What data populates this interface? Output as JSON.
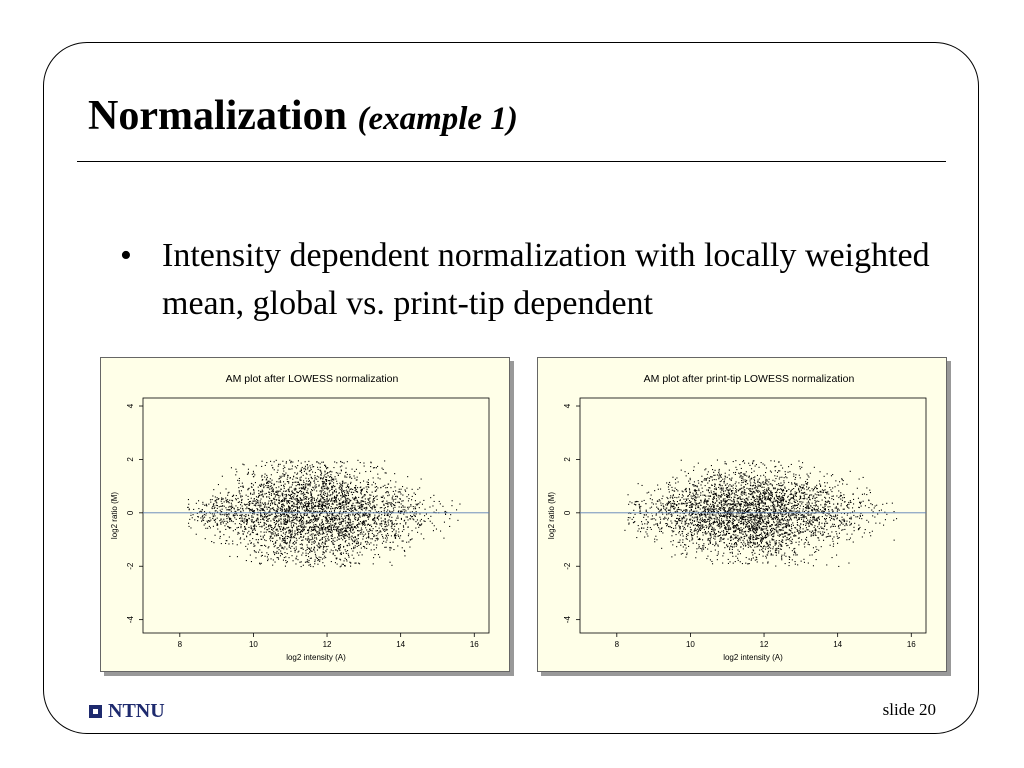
{
  "slide": {
    "title": "Normalization",
    "title_sub": "(example 1)",
    "bullets": [
      "Intensity dependent normalization with locally weighted mean, global vs. print-tip dependent"
    ],
    "bullet_symbol": "•",
    "footer_logo": "NTNU",
    "slide_number": "slide 20",
    "logo_color": "#1e2a6e"
  },
  "chart_data": [
    {
      "type": "scatter",
      "title": "AM plot after LOWESS normalization",
      "xlabel": "log2 intensity (A)",
      "ylabel": "log2 ratio (M)",
      "xlim": [
        7,
        16.4
      ],
      "ylim": [
        -4.5,
        4.3
      ],
      "xticks": [
        8,
        10,
        12,
        14,
        16
      ],
      "yticks": [
        -4,
        -2,
        0,
        2,
        4
      ],
      "xtick_labels": [
        "8",
        "10",
        "12",
        "14",
        "16"
      ],
      "ytick_labels": [
        "-4",
        "-2",
        "0",
        "2",
        "4"
      ],
      "reference_line_y": 0,
      "reference_line_color": "#5a7fb5",
      "point_count": 3500,
      "point_color": "#000000",
      "x_range_points": [
        8.2,
        15.6
      ],
      "y_spread_max": 2.0,
      "grid": false,
      "legend": "none",
      "distribution_note": "points cluster around M=0; upper band near +1 and lower band near -1 between A=10 and A=13"
    },
    {
      "type": "scatter",
      "title": "AM plot after print-tip LOWESS normalization",
      "xlabel": "log2 intensity (A)",
      "ylabel": "log2 ratio (M)",
      "xlim": [
        7,
        16.4
      ],
      "ylim": [
        -4.5,
        4.3
      ],
      "xticks": [
        8,
        10,
        12,
        14,
        16
      ],
      "yticks": [
        -4,
        -2,
        0,
        2,
        4
      ],
      "xtick_labels": [
        "8",
        "10",
        "12",
        "14",
        "16"
      ],
      "ytick_labels": [
        "-4",
        "-2",
        "0",
        "2",
        "4"
      ],
      "reference_line_y": 0,
      "reference_line_color": "#5a7fb5",
      "point_count": 3500,
      "point_color": "#000000",
      "x_range_points": [
        8.2,
        15.6
      ],
      "y_spread_max": 2.0,
      "grid": false,
      "legend": "none",
      "distribution_note": "points symmetric around M=0 without banding"
    }
  ]
}
